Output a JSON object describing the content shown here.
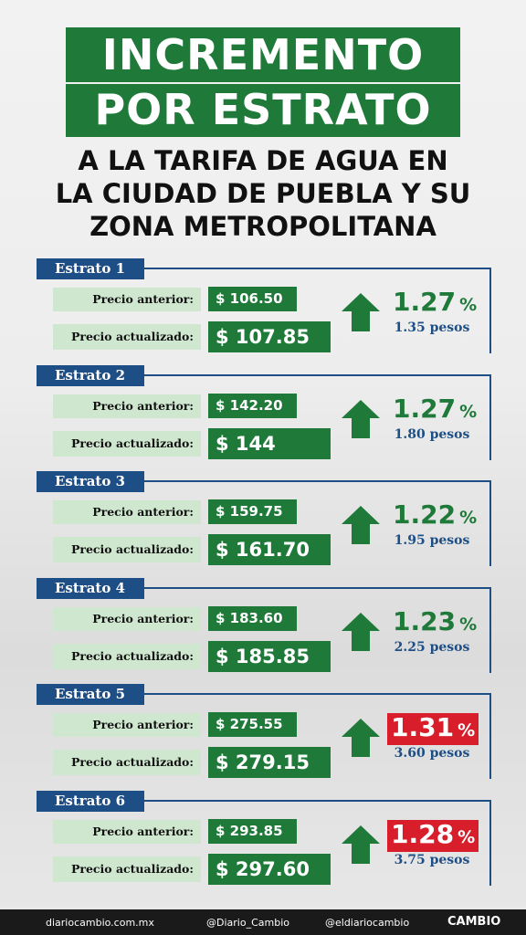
{
  "header": {
    "title": [
      "INCREMENTO",
      "POR ESTRATO"
    ],
    "subtitle": [
      "A LA TARIFA DE AGUA EN",
      "LA CIUDAD DE PUEBLA Y SU",
      "ZONA METROPOLITANA"
    ]
  },
  "strata": [
    {
      "name": "Estrato 1",
      "old_label": "Precio anterior:",
      "old": "$ 106.50",
      "new_label": "Precio actualizado:",
      "new": "$ 107.85",
      "percent": "1.27",
      "unit": "%",
      "pesos": "1.35 pesos",
      "highlight": false
    },
    {
      "name": "Estrato 2",
      "old_label": "Precio anterior:",
      "old": "$ 142.20",
      "new_label": "Precio actualizado:",
      "new": "$ 144",
      "percent": "1.27",
      "unit": "%",
      "pesos": "1.80 pesos",
      "highlight": false
    },
    {
      "name": "Estrato 3",
      "old_label": "Precio anterior:",
      "old": "$ 159.75",
      "new_label": "Precio actualizado:",
      "new": "$ 161.70",
      "percent": "1.22",
      "unit": "%",
      "pesos": "1.95 pesos",
      "highlight": false
    },
    {
      "name": "Estrato 4",
      "old_label": "Precio anterior:",
      "old": "$ 183.60",
      "new_label": "Precio actualizado:",
      "new": "$ 185.85",
      "percent": "1.23",
      "unit": "%",
      "pesos": "2.25 pesos",
      "highlight": false
    },
    {
      "name": "Estrato 5",
      "old_label": "Precio anterior:",
      "old": "$ 275.55",
      "new_label": "Precio actualizado:",
      "new": "$ 279.15",
      "percent": "1.31",
      "unit": "%",
      "pesos": "3.60 pesos",
      "highlight": true
    },
    {
      "name": "Estrato 6",
      "old_label": "Precio anterior:",
      "old": "$ 293.85",
      "new_label": "Precio actualizado:",
      "new": "$ 297.60",
      "percent": "1.28",
      "unit": "%",
      "pesos": "3.75 pesos",
      "highlight": true
    }
  ],
  "footer": {
    "website": "diariocambio.com.mx",
    "x": "@Diario_Cambio",
    "facebook": "@eldiariocambio",
    "brand": "CAMBIO"
  }
}
